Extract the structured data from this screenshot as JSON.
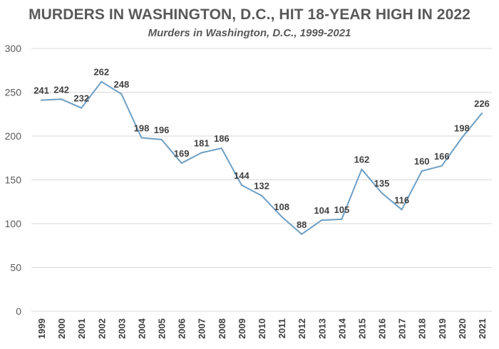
{
  "chart_data": {
    "type": "line",
    "title": "MURDERS IN WASHINGTON, D.C., HIT 18-YEAR HIGH IN 2022",
    "subtitle": "Murders in Washington, D.C., 1999-2021",
    "xlabel": "",
    "ylabel": "",
    "categories": [
      "1999",
      "2000",
      "2001",
      "2002",
      "2003",
      "2004",
      "2005",
      "2006",
      "2007",
      "2008",
      "2009",
      "2010",
      "2011",
      "2012",
      "2013",
      "2014",
      "2015",
      "2016",
      "2017",
      "2018",
      "2019",
      "2020",
      "2021"
    ],
    "values": [
      241,
      242,
      232,
      262,
      248,
      198,
      196,
      169,
      181,
      186,
      144,
      132,
      108,
      88,
      104,
      105,
      162,
      135,
      116,
      160,
      166,
      198,
      226
    ],
    "ylim": [
      0,
      300
    ],
    "yticks": [
      0,
      50,
      100,
      150,
      200,
      250,
      300
    ],
    "grid": true,
    "legend": "none",
    "data_labels": true,
    "line_color": "#6d9ec4",
    "grid_color": "#d9d9d9",
    "text_color": "#595959"
  }
}
